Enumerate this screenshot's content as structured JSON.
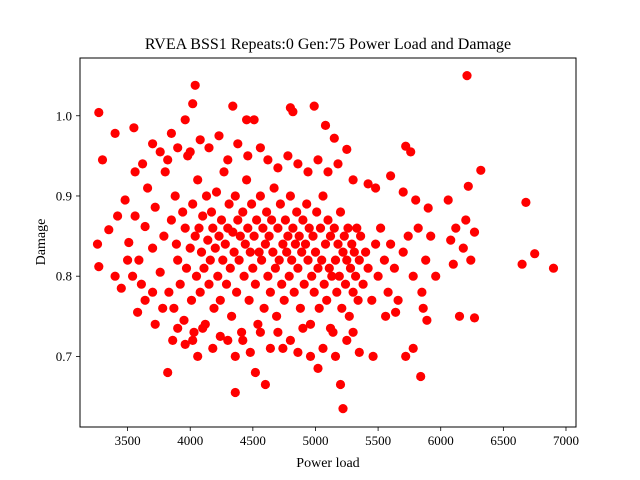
{
  "chart_data": {
    "type": "scatter",
    "title": "RVEA BSS1 Repeats:0 Gen:75 Power Load and Damage",
    "xlabel": "Power load",
    "ylabel": "Damage",
    "xlim": [
      3120,
      7080
    ],
    "ylim": [
      0.612,
      1.072
    ],
    "xticks": [
      3500,
      4000,
      4500,
      5000,
      5500,
      6000,
      6500,
      7000
    ],
    "yticks": [
      0.7,
      0.8,
      0.9,
      1.0
    ],
    "xtick_labels": [
      "3500",
      "4000",
      "4500",
      "5000",
      "5500",
      "6000",
      "6500",
      "7000"
    ],
    "ytick_labels": [
      "0.7",
      "0.8",
      "0.9",
      "1.0"
    ],
    "grid": false,
    "marker_color": "#ff0000",
    "series": [
      {
        "points": [
          [
            3270,
            1.004
          ],
          [
            4040,
            1.038
          ],
          [
            4340,
            1.012
          ],
          [
            4800,
            1.01
          ],
          [
            4990,
            1.012
          ],
          [
            6210,
            1.05
          ],
          [
            3300,
            0.945
          ],
          [
            3400,
            0.978
          ],
          [
            3550,
            0.985
          ],
          [
            3850,
            0.978
          ],
          [
            3960,
            0.995
          ],
          [
            4020,
            1.015
          ],
          [
            4450,
            0.995
          ],
          [
            4510,
            0.995
          ],
          [
            4820,
            1.005
          ],
          [
            5080,
            0.988
          ],
          [
            5150,
            0.972
          ],
          [
            5250,
            0.958
          ],
          [
            5720,
            0.962
          ],
          [
            5760,
            0.955
          ],
          [
            6220,
            0.912
          ],
          [
            6320,
            0.932
          ],
          [
            3260,
            0.84
          ],
          [
            3270,
            0.812
          ],
          [
            3350,
            0.858
          ],
          [
            3420,
            0.875
          ],
          [
            3480,
            0.895
          ],
          [
            3510,
            0.842
          ],
          [
            3560,
            0.875
          ],
          [
            3590,
            0.82
          ],
          [
            3610,
            0.79
          ],
          [
            3640,
            0.862
          ],
          [
            3660,
            0.91
          ],
          [
            3700,
            0.835
          ],
          [
            3720,
            0.886
          ],
          [
            3760,
            0.805
          ],
          [
            3790,
            0.85
          ],
          [
            3800,
            0.93
          ],
          [
            3830,
            0.78
          ],
          [
            3850,
            0.87
          ],
          [
            3870,
            0.76
          ],
          [
            3880,
            0.9
          ],
          [
            3890,
            0.84
          ],
          [
            3900,
            0.82
          ],
          [
            3920,
            0.79
          ],
          [
            3940,
            0.88
          ],
          [
            3950,
            0.745
          ],
          [
            3960,
            0.86
          ],
          [
            3970,
            0.81
          ],
          [
            3980,
            0.95
          ],
          [
            4000,
            0.835
          ],
          [
            4010,
            0.77
          ],
          [
            4020,
            0.89
          ],
          [
            4030,
            0.73
          ],
          [
            4040,
            0.85
          ],
          [
            4050,
            0.8
          ],
          [
            4060,
            0.92
          ],
          [
            4070,
            0.86
          ],
          [
            4080,
            0.78
          ],
          [
            4090,
            0.83
          ],
          [
            4100,
            0.875
          ],
          [
            4110,
            0.81
          ],
          [
            4120,
            0.74
          ],
          [
            4130,
            0.9
          ],
          [
            4140,
            0.845
          ],
          [
            4150,
            0.79
          ],
          [
            4160,
            0.82
          ],
          [
            4170,
            0.88
          ],
          [
            4180,
            0.86
          ],
          [
            4190,
            0.76
          ],
          [
            4200,
            0.835
          ],
          [
            4210,
            0.905
          ],
          [
            4220,
            0.8
          ],
          [
            4230,
            0.85
          ],
          [
            4240,
            0.77
          ],
          [
            4250,
            0.87
          ],
          [
            4260,
            0.82
          ],
          [
            4270,
            0.93
          ],
          [
            4280,
            0.84
          ],
          [
            4290,
            0.79
          ],
          [
            4300,
            0.86
          ],
          [
            4310,
            0.89
          ],
          [
            4320,
            0.81
          ],
          [
            4330,
            0.75
          ],
          [
            4340,
            0.855
          ],
          [
            4350,
            0.83
          ],
          [
            4360,
            0.9
          ],
          [
            4370,
            0.78
          ],
          [
            4380,
            0.87
          ],
          [
            4390,
            0.82
          ],
          [
            4400,
            0.85
          ],
          [
            4410,
            0.73
          ],
          [
            4420,
            0.88
          ],
          [
            4430,
            0.8
          ],
          [
            4440,
            0.84
          ],
          [
            4450,
            0.92
          ],
          [
            4460,
            0.86
          ],
          [
            4470,
            0.77
          ],
          [
            4480,
            0.83
          ],
          [
            4490,
            0.89
          ],
          [
            4500,
            0.81
          ],
          [
            4510,
            0.85
          ],
          [
            4520,
            0.79
          ],
          [
            4530,
            0.87
          ],
          [
            4540,
            0.74
          ],
          [
            4550,
            0.83
          ],
          [
            4560,
            0.9
          ],
          [
            4570,
            0.82
          ],
          [
            4580,
            0.86
          ],
          [
            4590,
            0.76
          ],
          [
            4600,
            0.84
          ],
          [
            4610,
            0.88
          ],
          [
            4620,
            0.8
          ],
          [
            4630,
            0.85
          ],
          [
            4640,
            0.78
          ],
          [
            4650,
            0.87
          ],
          [
            4660,
            0.83
          ],
          [
            4670,
            0.91
          ],
          [
            4680,
            0.81
          ],
          [
            4690,
            0.75
          ],
          [
            4700,
            0.86
          ],
          [
            4710,
            0.82
          ],
          [
            4720,
            0.89
          ],
          [
            4730,
            0.79
          ],
          [
            4740,
            0.84
          ],
          [
            4750,
            0.77
          ],
          [
            4760,
            0.87
          ],
          [
            4770,
            0.83
          ],
          [
            4780,
            0.85
          ],
          [
            4790,
            0.8
          ],
          [
            4800,
            0.9
          ],
          [
            4810,
            0.82
          ],
          [
            4820,
            0.86
          ],
          [
            4830,
            0.78
          ],
          [
            4840,
            0.84
          ],
          [
            4850,
            0.88
          ],
          [
            4860,
            0.81
          ],
          [
            4870,
            0.85
          ],
          [
            4880,
            0.76
          ],
          [
            4890,
            0.83
          ],
          [
            4900,
            0.87
          ],
          [
            4910,
            0.79
          ],
          [
            4920,
            0.84
          ],
          [
            4930,
            0.89
          ],
          [
            4940,
            0.82
          ],
          [
            4950,
            0.86
          ],
          [
            4960,
            0.74
          ],
          [
            4970,
            0.8
          ],
          [
            4980,
            0.85
          ],
          [
            4990,
            0.78
          ],
          [
            5000,
            0.83
          ],
          [
            5010,
            0.88
          ],
          [
            5020,
            0.81
          ],
          [
            5030,
            0.76
          ],
          [
            5040,
            0.86
          ],
          [
            5050,
            0.82
          ],
          [
            5060,
            0.9
          ],
          [
            5070,
            0.79
          ],
          [
            5080,
            0.84
          ],
          [
            5090,
            0.77
          ],
          [
            5100,
            0.87
          ],
          [
            5110,
            0.81
          ],
          [
            5120,
            0.85
          ],
          [
            5130,
            0.8
          ],
          [
            5140,
            0.73
          ],
          [
            5150,
            0.86
          ],
          [
            5160,
            0.82
          ],
          [
            5170,
            0.78
          ],
          [
            5180,
            0.84
          ],
          [
            5190,
            0.8
          ],
          [
            5200,
            0.88
          ],
          [
            5210,
            0.76
          ],
          [
            5220,
            0.83
          ],
          [
            5230,
            0.85
          ],
          [
            5240,
            0.79
          ],
          [
            5250,
            0.82
          ],
          [
            5260,
            0.86
          ],
          [
            5270,
            0.75
          ],
          [
            5280,
            0.81
          ],
          [
            5290,
            0.84
          ],
          [
            5300,
            0.78
          ],
          [
            5310,
            0.83
          ],
          [
            5320,
            0.8
          ],
          [
            5330,
            0.86
          ],
          [
            5340,
            0.77
          ],
          [
            5350,
            0.82
          ],
          [
            5360,
            0.85
          ],
          [
            5380,
            0.79
          ],
          [
            5400,
            0.83
          ],
          [
            5420,
            0.81
          ],
          [
            5450,
            0.77
          ],
          [
            5480,
            0.84
          ],
          [
            5500,
            0.8
          ],
          [
            5520,
            0.86
          ],
          [
            5550,
            0.82
          ],
          [
            5580,
            0.78
          ],
          [
            5600,
            0.84
          ],
          [
            5630,
            0.81
          ],
          [
            5660,
            0.77
          ],
          [
            5700,
            0.83
          ],
          [
            5740,
            0.85
          ],
          [
            5780,
            0.8
          ],
          [
            5820,
            0.86
          ],
          [
            5850,
            0.78
          ],
          [
            5880,
            0.82
          ],
          [
            5920,
            0.85
          ],
          [
            5960,
            0.8
          ],
          [
            3560,
            0.93
          ],
          [
            3620,
            0.94
          ],
          [
            3700,
            0.965
          ],
          [
            3760,
            0.955
          ],
          [
            3820,
            0.945
          ],
          [
            3900,
            0.96
          ],
          [
            4000,
            0.955
          ],
          [
            4080,
            0.97
          ],
          [
            4150,
            0.96
          ],
          [
            4230,
            0.975
          ],
          [
            4300,
            0.945
          ],
          [
            4380,
            0.965
          ],
          [
            4460,
            0.95
          ],
          [
            4560,
            0.96
          ],
          [
            4620,
            0.945
          ],
          [
            4700,
            0.935
          ],
          [
            4780,
            0.95
          ],
          [
            4860,
            0.94
          ],
          [
            4940,
            0.93
          ],
          [
            5020,
            0.945
          ],
          [
            5100,
            0.93
          ],
          [
            5180,
            0.94
          ],
          [
            5300,
            0.92
          ],
          [
            5420,
            0.915
          ],
          [
            5480,
            0.91
          ],
          [
            5600,
            0.925
          ],
          [
            5700,
            0.905
          ],
          [
            5800,
            0.895
          ],
          [
            5900,
            0.885
          ],
          [
            3400,
            0.8
          ],
          [
            3450,
            0.785
          ],
          [
            3500,
            0.82
          ],
          [
            3540,
            0.8
          ],
          [
            3580,
            0.755
          ],
          [
            3640,
            0.77
          ],
          [
            3700,
            0.78
          ],
          [
            3720,
            0.74
          ],
          [
            3780,
            0.76
          ],
          [
            3820,
            0.68
          ],
          [
            3860,
            0.72
          ],
          [
            3900,
            0.735
          ],
          [
            3960,
            0.715
          ],
          [
            4020,
            0.72
          ],
          [
            4060,
            0.7
          ],
          [
            4100,
            0.735
          ],
          [
            4180,
            0.71
          ],
          [
            4240,
            0.725
          ],
          [
            4300,
            0.72
          ],
          [
            4360,
            0.7
          ],
          [
            4360,
            0.655
          ],
          [
            4420,
            0.72
          ],
          [
            4480,
            0.705
          ],
          [
            4520,
            0.68
          ],
          [
            4560,
            0.73
          ],
          [
            4600,
            0.665
          ],
          [
            4640,
            0.71
          ],
          [
            4700,
            0.73
          ],
          [
            4740,
            0.71
          ],
          [
            4800,
            0.72
          ],
          [
            4860,
            0.705
          ],
          [
            4900,
            0.735
          ],
          [
            4960,
            0.7
          ],
          [
            5020,
            0.685
          ],
          [
            5060,
            0.71
          ],
          [
            5120,
            0.735
          ],
          [
            5160,
            0.7
          ],
          [
            5200,
            0.665
          ],
          [
            5220,
            0.635
          ],
          [
            5250,
            0.72
          ],
          [
            5300,
            0.73
          ],
          [
            5350,
            0.705
          ],
          [
            5460,
            0.7
          ],
          [
            5560,
            0.75
          ],
          [
            5640,
            0.755
          ],
          [
            5720,
            0.7
          ],
          [
            5780,
            0.71
          ],
          [
            5840,
            0.675
          ],
          [
            5860,
            0.76
          ],
          [
            5890,
            0.745
          ],
          [
            6080,
            0.845
          ],
          [
            6100,
            0.815
          ],
          [
            6120,
            0.86
          ],
          [
            6150,
            0.75
          ],
          [
            6180,
            0.835
          ],
          [
            6200,
            0.87
          ],
          [
            6240,
            0.82
          ],
          [
            6270,
            0.855
          ],
          [
            6270,
            0.748
          ],
          [
            6060,
            0.895
          ],
          [
            6650,
            0.815
          ],
          [
            6680,
            0.892
          ],
          [
            6750,
            0.828
          ],
          [
            6900,
            0.81
          ]
        ]
      }
    ]
  }
}
